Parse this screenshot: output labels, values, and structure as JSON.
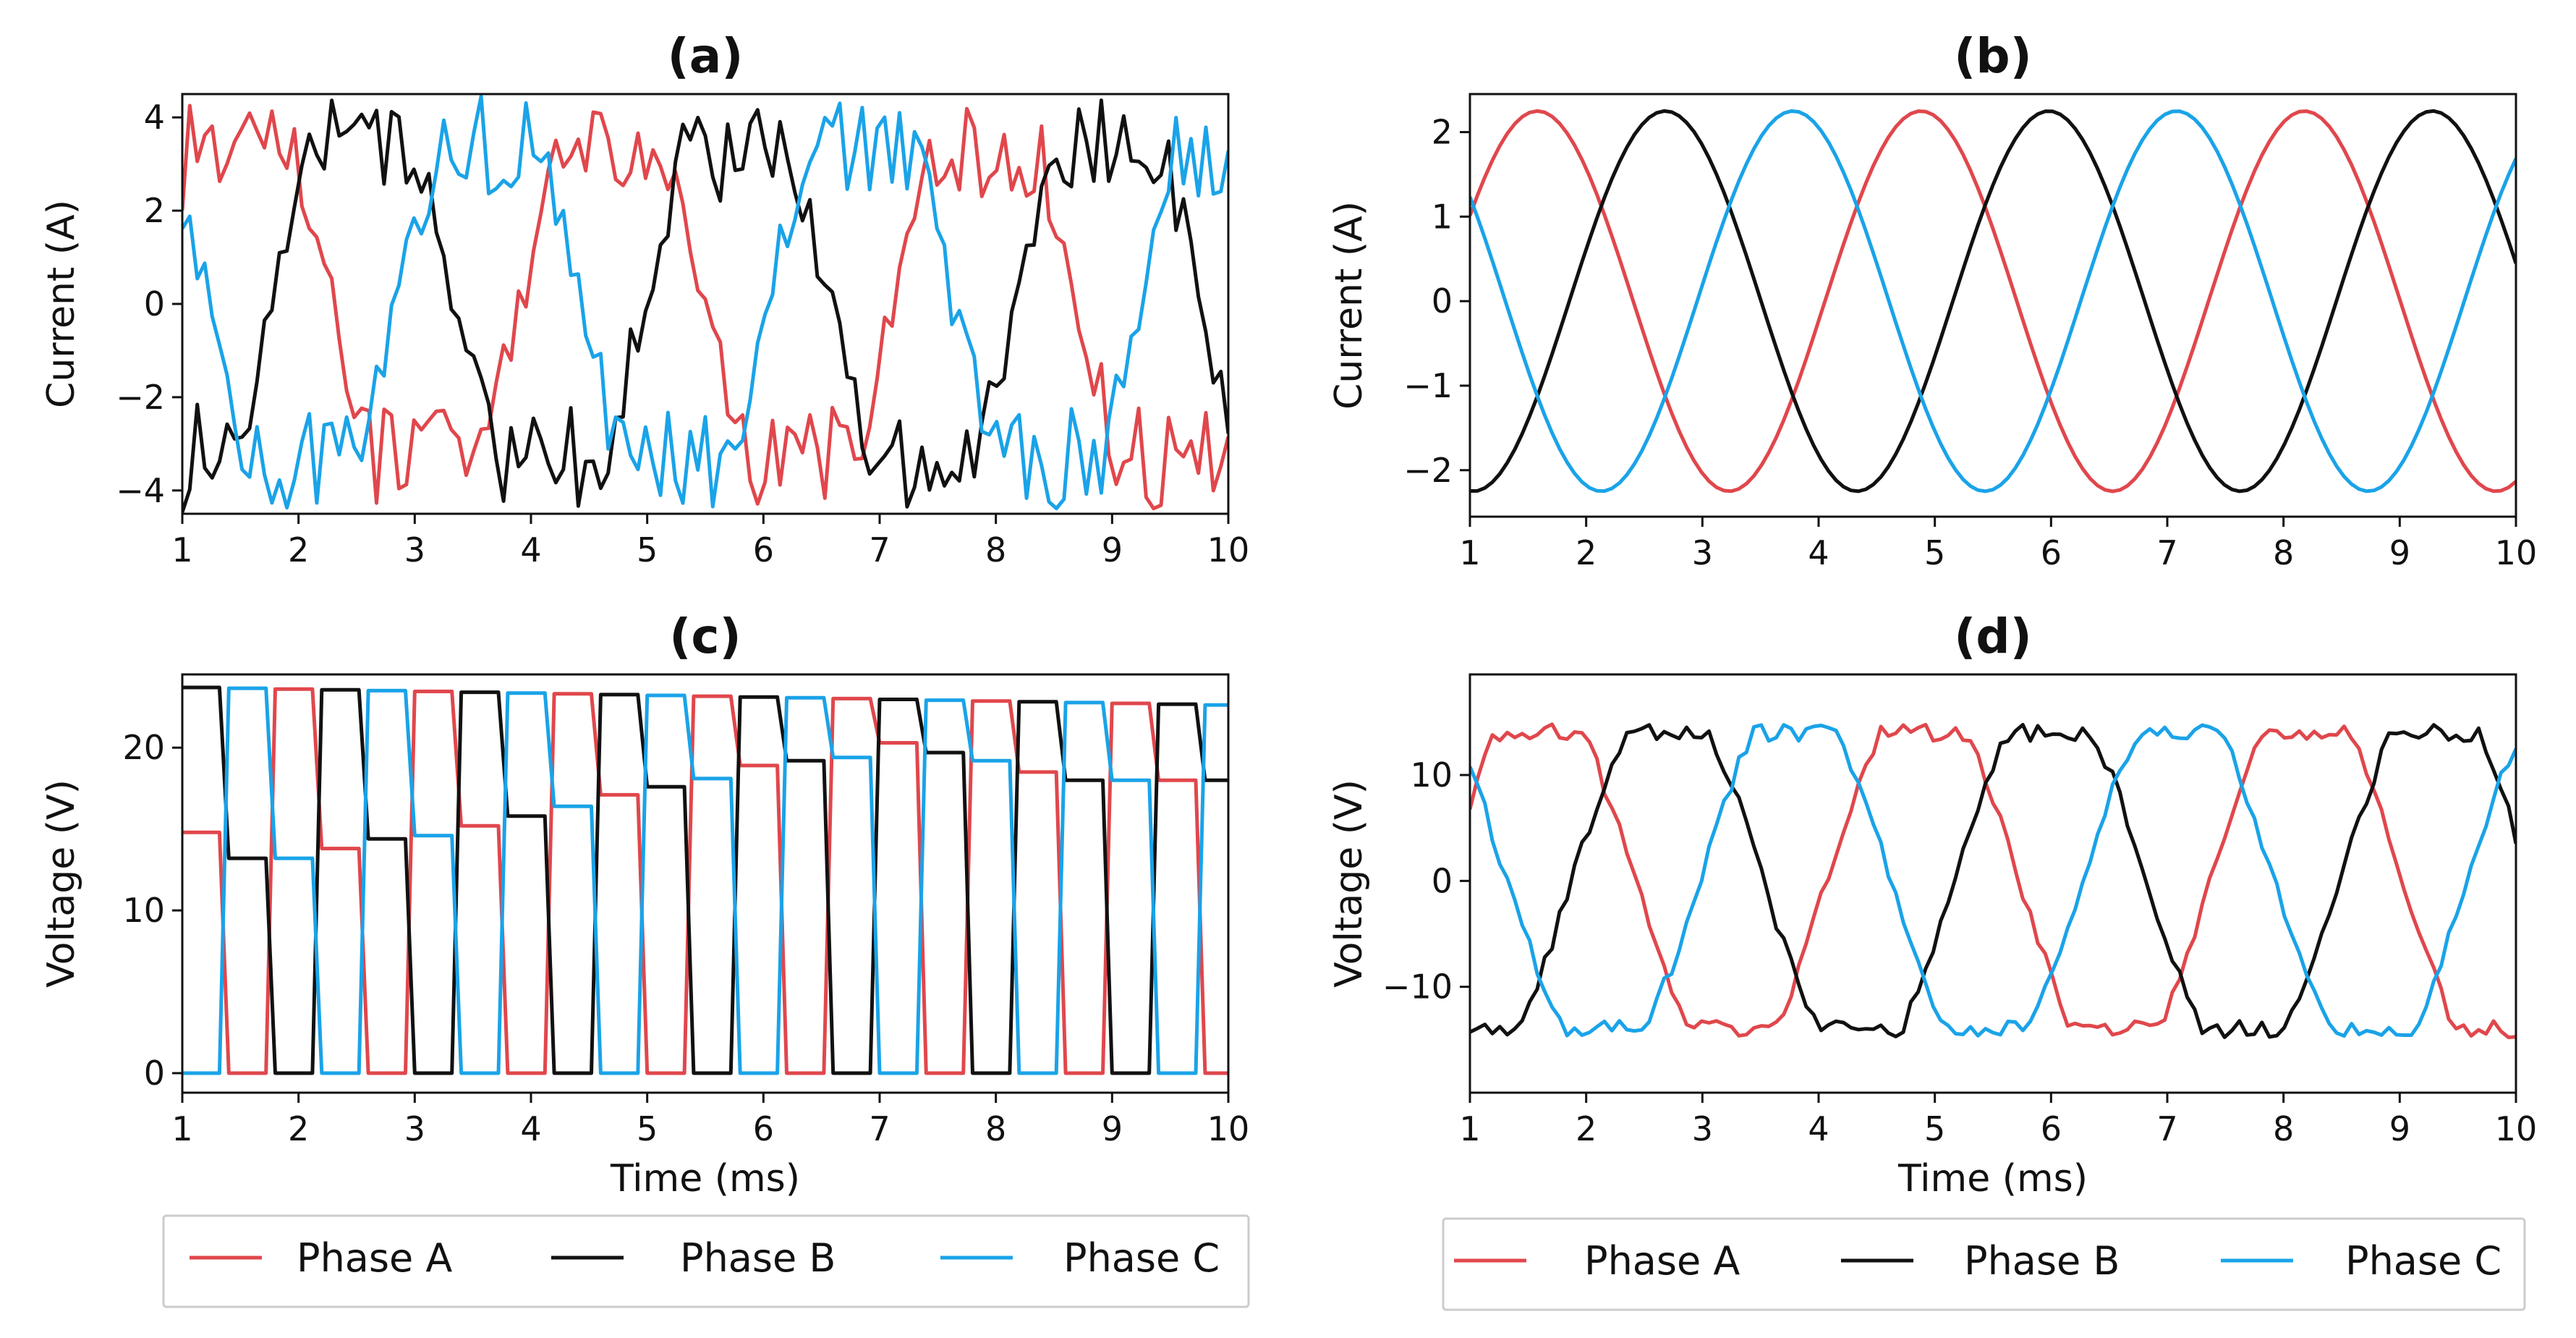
{
  "colors": {
    "phase_a": "#e0474c",
    "phase_b": "#111111",
    "phase_c": "#1aa3e8"
  },
  "legend_left": [
    {
      "label": "Phase A"
    },
    {
      "label": "Phase B"
    },
    {
      "label": "Phase C"
    }
  ],
  "legend_right": [
    {
      "label": "Phase A"
    },
    {
      "label": "Phase B"
    },
    {
      "label": "Phase C"
    }
  ],
  "chart_data": [
    {
      "panel": "a",
      "type": "line",
      "title": "(a)",
      "xlabel": "",
      "ylabel": "Current (A)",
      "xlim": [
        1,
        10
      ],
      "ylim": [
        -4.5,
        4.5
      ],
      "xticks": [
        1,
        2,
        3,
        4,
        5,
        6,
        7,
        8,
        9,
        10
      ],
      "yticks": [
        -4,
        -2,
        0,
        2,
        4
      ],
      "ytick_labels": [
        "−4",
        "−2",
        "0",
        "2",
        "4"
      ],
      "signal": {
        "kind": "pwm_current",
        "amplitude": 3.3,
        "ripple": 0.6,
        "period_ms": 3.2,
        "phase_offset_deg": [
          0,
          -120,
          120
        ]
      },
      "series": [
        {
          "name": "Phase A"
        },
        {
          "name": "Phase B"
        },
        {
          "name": "Phase C"
        }
      ]
    },
    {
      "panel": "b",
      "type": "line",
      "title": "(b)",
      "xlabel": "",
      "ylabel": "Current (A)",
      "xlim": [
        1,
        10
      ],
      "ylim": [
        -2.55,
        2.45
      ],
      "xticks": [
        1,
        2,
        3,
        4,
        5,
        6,
        7,
        8,
        9,
        10
      ],
      "yticks": [
        -2,
        -1,
        0,
        1,
        2
      ],
      "ytick_labels": [
        "−2",
        "−1",
        "0",
        "1",
        "2"
      ],
      "signal": {
        "kind": "sine",
        "amplitude": 2.25,
        "period_ms": 3.3,
        "peak_time_ms": 1.58,
        "phase_offset_deg": [
          0,
          -120,
          120
        ]
      },
      "series": [
        {
          "name": "Phase A"
        },
        {
          "name": "Phase B"
        },
        {
          "name": "Phase C"
        }
      ]
    },
    {
      "panel": "c",
      "type": "line",
      "title": "(c)",
      "xlabel": "Time (ms)",
      "ylabel": "Voltage (V)",
      "xlim": [
        1,
        10
      ],
      "ylim": [
        -1.2,
        24.5
      ],
      "xticks": [
        1,
        2,
        3,
        4,
        5,
        6,
        7,
        8,
        9,
        10
      ],
      "yticks": [
        0,
        10,
        20
      ],
      "ytick_labels": [
        "0",
        "10",
        "20"
      ],
      "signal": {
        "kind": "pwm_voltage",
        "high_start": 23.7,
        "high_end": 22.6,
        "step_ms": 0.4
      },
      "series": [
        {
          "name": "Phase A"
        },
        {
          "name": "Phase B"
        },
        {
          "name": "Phase C"
        }
      ]
    },
    {
      "panel": "d",
      "type": "line",
      "title": "(d)",
      "xlabel": "Time (ms)",
      "ylabel": "Voltage (V)",
      "xlim": [
        1,
        10
      ],
      "ylim": [
        -20,
        19.5
      ],
      "xticks": [
        1,
        2,
        3,
        4,
        5,
        6,
        7,
        8,
        9,
        10
      ],
      "yticks": [
        -10,
        0,
        10
      ],
      "ytick_labels": [
        "−10",
        "0",
        "10"
      ],
      "signal": {
        "kind": "sine_noisy",
        "amplitude": 14,
        "flat_top": 1.3,
        "noise": 0.8,
        "period_ms": 3.3,
        "peak_time_ms": 1.6,
        "phase_offset_deg": [
          0,
          -120,
          120
        ]
      },
      "series": [
        {
          "name": "Phase A"
        },
        {
          "name": "Phase B"
        },
        {
          "name": "Phase C"
        }
      ]
    }
  ]
}
